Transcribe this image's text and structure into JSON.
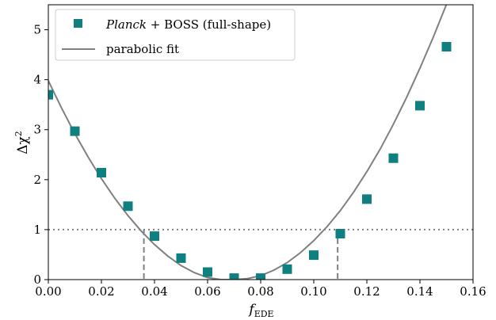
{
  "chart_data": {
    "type": "scatter",
    "xlabel": "f_EDE",
    "ylabel": "Δχ²",
    "xlim": [
      0.0,
      0.16
    ],
    "ylim": [
      0,
      5.5
    ],
    "x_ticks": [
      "0.00",
      "0.02",
      "0.04",
      "0.06",
      "0.08",
      "0.10",
      "0.12",
      "0.14",
      "0.16"
    ],
    "y_ticks": [
      "0",
      "1",
      "2",
      "3",
      "4",
      "5"
    ],
    "legend_position": "top-left",
    "grid": false,
    "series": [
      {
        "name": "Planck + BOSS (full-shape)",
        "type": "scatter",
        "marker": "square",
        "color": "#0f7f7f",
        "x": [
          0.0,
          0.01,
          0.02,
          0.03,
          0.04,
          0.05,
          0.06,
          0.07,
          0.08,
          0.09,
          0.1,
          0.11,
          0.12,
          0.13,
          0.14,
          0.15
        ],
        "y": [
          3.7,
          2.97,
          2.14,
          1.47,
          0.87,
          0.43,
          0.15,
          0.03,
          0.03,
          0.21,
          0.49,
          0.92,
          1.61,
          2.43,
          3.48,
          4.66
        ]
      },
      {
        "name": "parabolic fit",
        "type": "line",
        "color": "#808080",
        "x": [
          0.0,
          0.005,
          0.01,
          0.015,
          0.02,
          0.025,
          0.03,
          0.035,
          0.04,
          0.045,
          0.05,
          0.055,
          0.06,
          0.065,
          0.07,
          0.075,
          0.08,
          0.085,
          0.09,
          0.095,
          0.1,
          0.105,
          0.11,
          0.115,
          0.12,
          0.125,
          0.13,
          0.135,
          0.14,
          0.145,
          0.15,
          0.155
        ],
        "y": [
          3.98,
          3.43,
          2.92,
          2.45,
          2.02,
          1.63,
          1.28,
          0.97,
          0.7,
          0.47,
          0.28,
          0.14,
          0.04,
          0.0,
          0.0,
          0.02,
          0.08,
          0.19,
          0.34,
          0.54,
          0.78,
          1.06,
          1.38,
          1.75,
          2.16,
          2.61,
          3.11,
          3.65,
          4.23,
          4.85,
          5.51,
          6.2
        ]
      }
    ],
    "annotations": [
      {
        "kind": "hline",
        "y": 1,
        "style": "dotted",
        "color": "#808080"
      },
      {
        "kind": "vline",
        "x": 0.036,
        "y_top": 1,
        "style": "dashed",
        "color": "#808080"
      },
      {
        "kind": "vline",
        "x": 0.109,
        "y_top": 1,
        "style": "dashed",
        "color": "#808080"
      }
    ]
  },
  "legend": {
    "entry1_italic": "Planck",
    "entry1_rest": " + BOSS (full-shape)",
    "entry2": "parabolic fit"
  },
  "axes": {
    "x_label_main": "f",
    "x_label_sub": "EDE",
    "y_label_main": "Δχ",
    "y_label_sup": "2"
  }
}
